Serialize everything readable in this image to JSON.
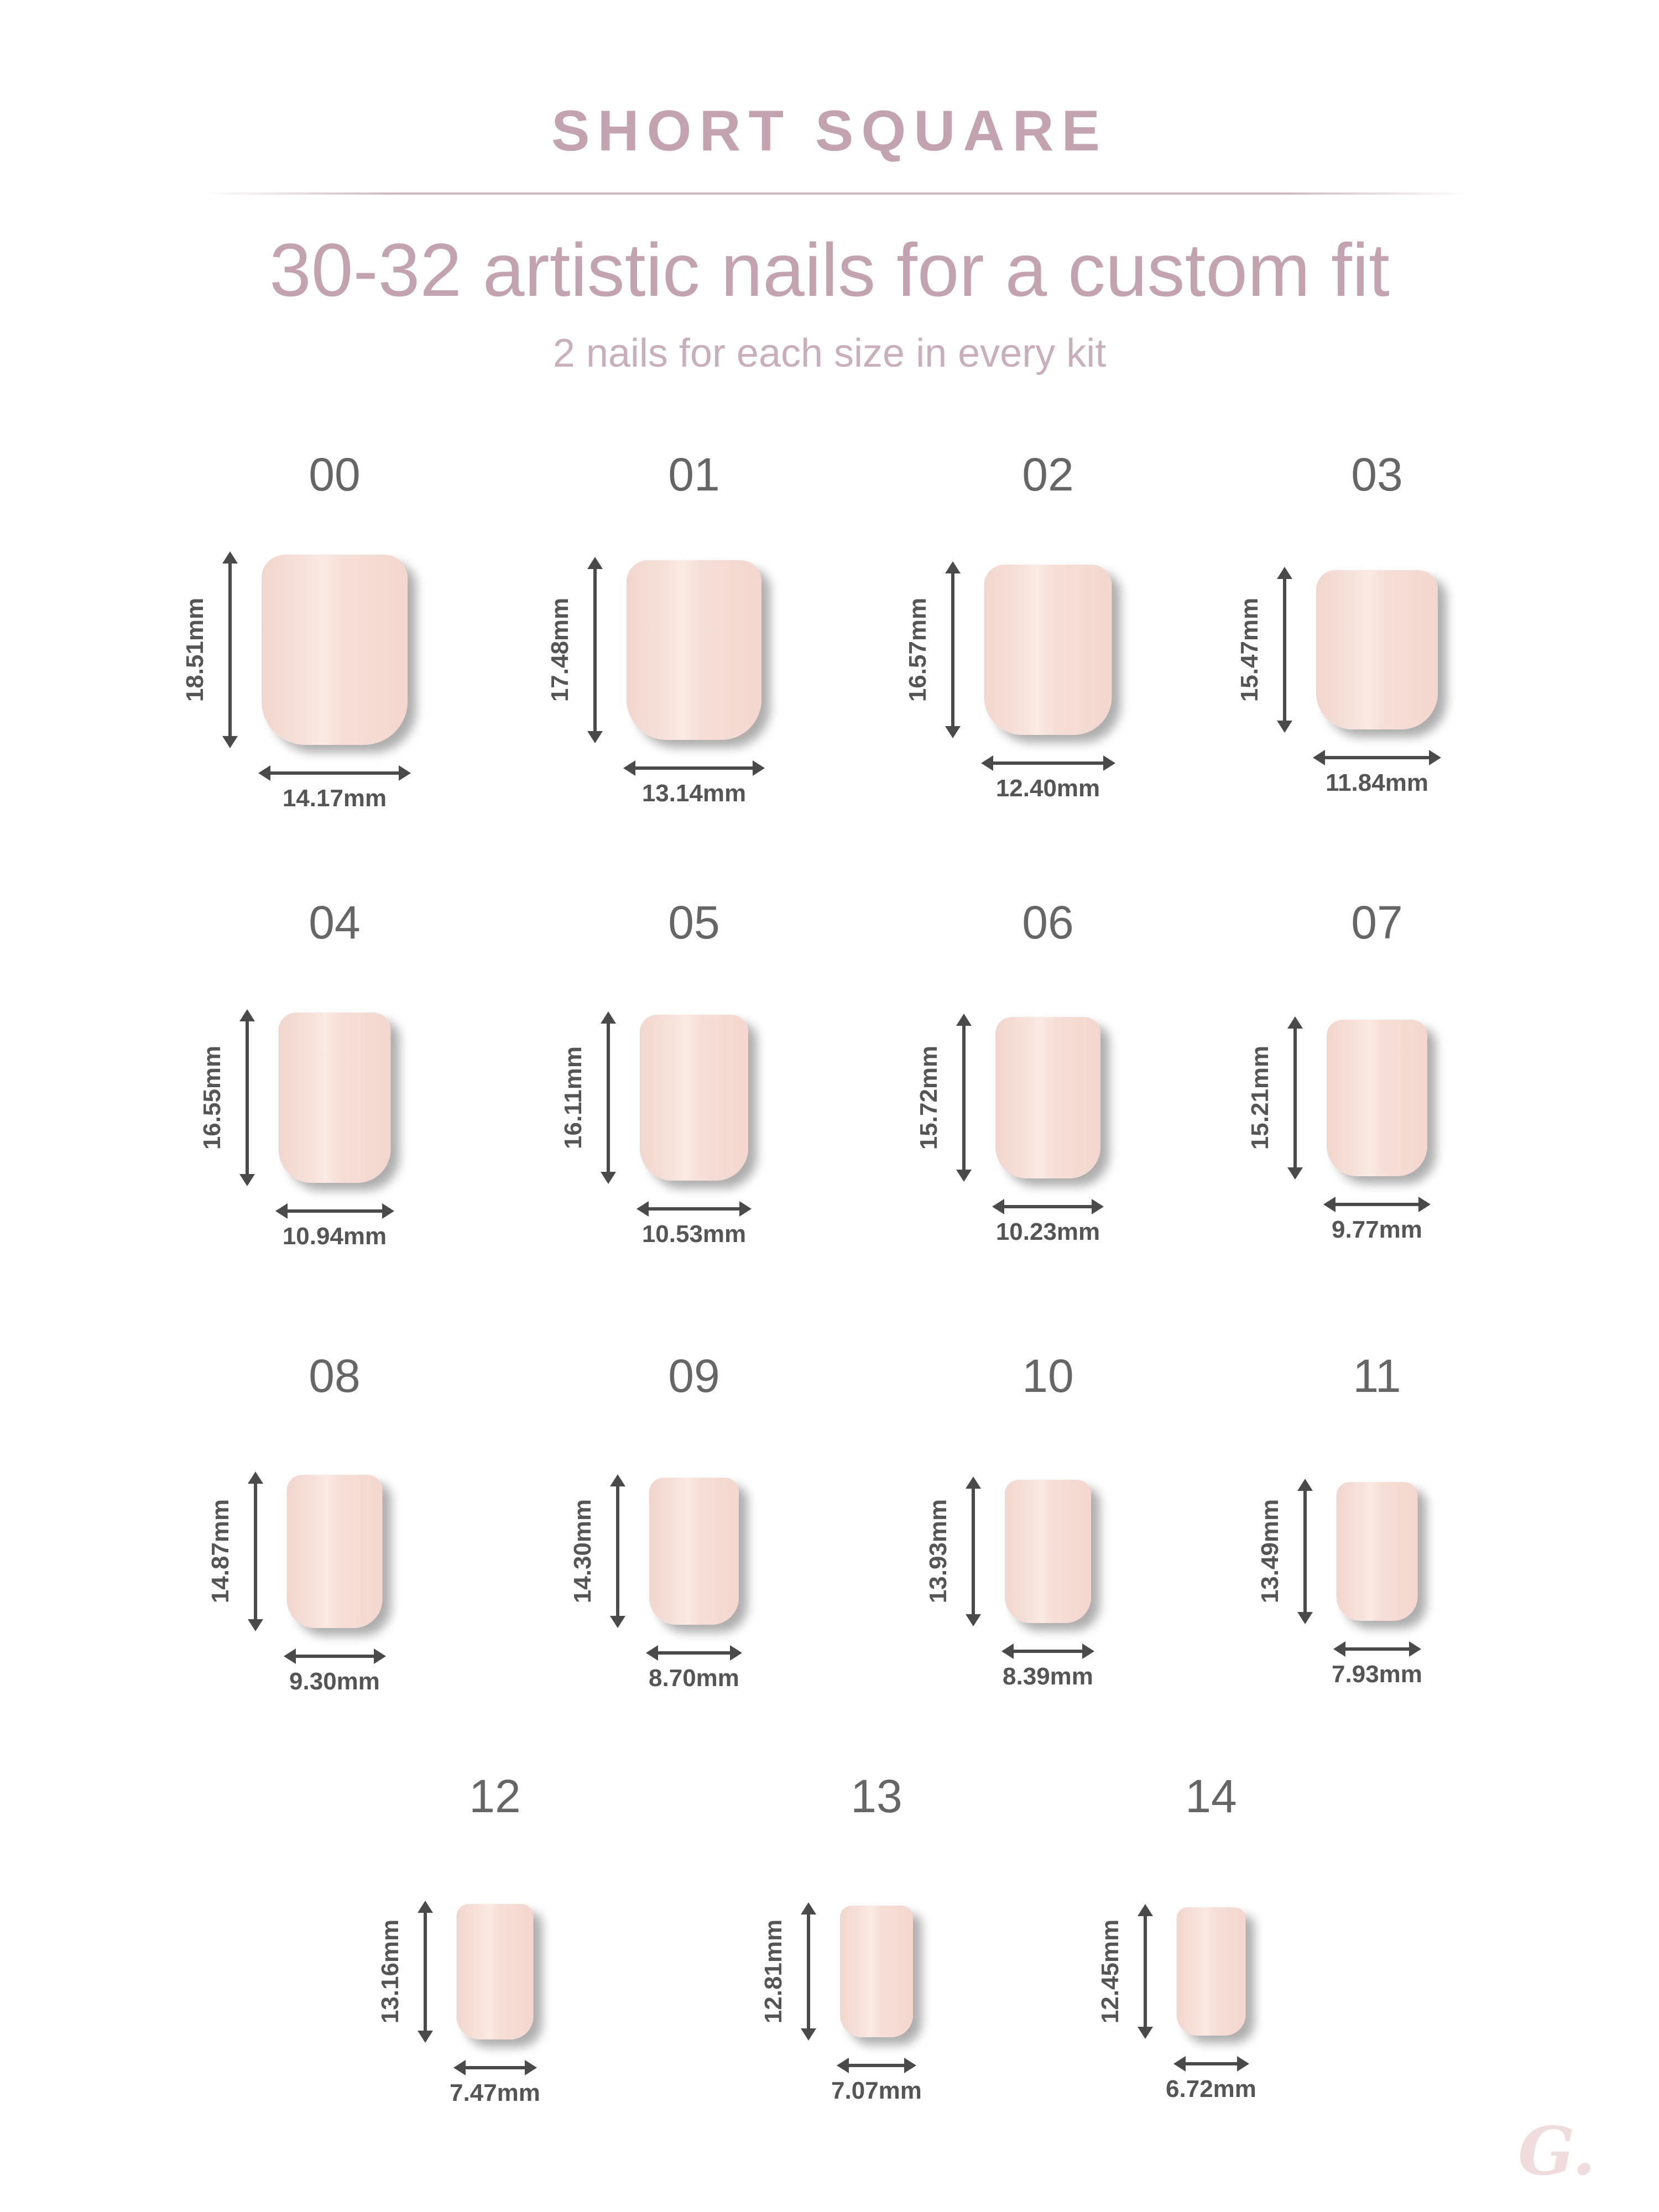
{
  "header": {
    "shape_title": "SHORT SQUARE",
    "headline": "30-32 artistic nails for a custom fit",
    "subline": "2 nails for each size in every kit"
  },
  "colors": {
    "title_accent": "#c4a3b0",
    "nail_fill": "#f6ded6",
    "arrow": "#4a4a4a",
    "label_text": "#555555",
    "logo": "#f0dcdc"
  },
  "sizes": [
    {
      "number": "00",
      "length": "18.51mm",
      "width": "14.17mm"
    },
    {
      "number": "01",
      "length": "17.48mm",
      "width": "13.14mm"
    },
    {
      "number": "02",
      "length": "16.57mm",
      "width": "12.40mm"
    },
    {
      "number": "03",
      "length": "15.47mm",
      "width": "11.84mm"
    },
    {
      "number": "04",
      "length": "16.55mm",
      "width": "10.94mm"
    },
    {
      "number": "05",
      "length": "16.11mm",
      "width": "10.53mm"
    },
    {
      "number": "06",
      "length": "15.72mm",
      "width": "10.23mm"
    },
    {
      "number": "07",
      "length": "15.21mm",
      "width": "9.77mm"
    },
    {
      "number": "08",
      "length": "14.87mm",
      "width": "9.30mm"
    },
    {
      "number": "09",
      "length": "14.30mm",
      "width": "8.70mm"
    },
    {
      "number": "10",
      "length": "13.93mm",
      "width": "8.39mm"
    },
    {
      "number": "11",
      "length": "13.49mm",
      "width": "7.93mm"
    },
    {
      "number": "12",
      "length": "13.16mm",
      "width": "7.47mm"
    },
    {
      "number": "13",
      "length": "12.81mm",
      "width": "7.07mm"
    },
    {
      "number": "14",
      "length": "12.45mm",
      "width": "6.72mm"
    }
  ],
  "logo_text": "G."
}
